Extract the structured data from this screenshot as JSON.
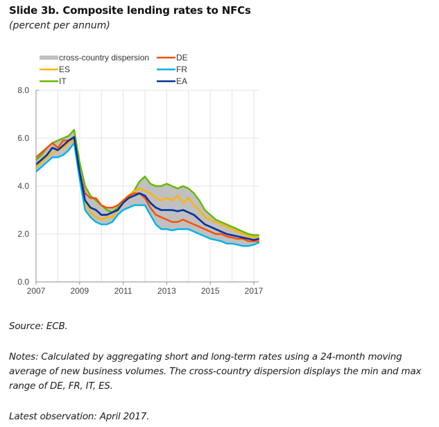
{
  "header": {
    "title": "Slide 3b. Composite lending rates to NFCs",
    "subtitle": "(percent per annum)"
  },
  "footer": {
    "source": "Source: ECB.",
    "notes": "Notes: Calculated by aggregating short and long-term rates using a 24-month moving average of new business volumes. The cross-country dispersion displays the min and max range of DE, FR, IT, ES.",
    "latest": "Latest observation: April 2017."
  },
  "chart_data": {
    "type": "line",
    "title": "Slide 3b. Composite lending rates to NFCs",
    "subtitle": "(percent per annum)",
    "xlabel": "",
    "ylabel": "percent per annum",
    "xlim": [
      2007,
      2017.3
    ],
    "ylim": [
      0,
      8
    ],
    "xticks": [
      2007,
      2009,
      2011,
      2013,
      2015,
      2017
    ],
    "xtick_labels": [
      "2007",
      "2009",
      "2011",
      "2013",
      "2015",
      "2017"
    ],
    "yticks": [
      0,
      2,
      4,
      6,
      8
    ],
    "ytick_labels": [
      "0.0",
      "2.0",
      "4.0",
      "6.0",
      "8.0"
    ],
    "grid": true,
    "legend_position": "top-left",
    "legend": [
      {
        "name": "cross-country dispersion",
        "kind": "area",
        "color": "#c0c0c0"
      },
      {
        "name": "DE",
        "kind": "line",
        "color": "#ff4b00"
      },
      {
        "name": "ES",
        "kind": "line",
        "color": "#ffb400"
      },
      {
        "name": "FR",
        "kind": "line",
        "color": "#00b1ea"
      },
      {
        "name": "IT",
        "kind": "line",
        "color": "#65b800"
      },
      {
        "name": "EA",
        "kind": "line",
        "color": "#003299"
      }
    ],
    "dispersion": {
      "name": "cross-country dispersion",
      "of": [
        "DE",
        "FR",
        "IT",
        "ES"
      ],
      "color": "#c0c0c0"
    },
    "x": [
      2007.0,
      2007.25,
      2007.5,
      2007.75,
      2008.0,
      2008.25,
      2008.5,
      2008.75,
      2009.0,
      2009.25,
      2009.5,
      2009.75,
      2010.0,
      2010.25,
      2010.5,
      2010.75,
      2011.0,
      2011.25,
      2011.5,
      2011.75,
      2012.0,
      2012.25,
      2012.5,
      2012.75,
      2013.0,
      2013.25,
      2013.5,
      2013.75,
      2014.0,
      2014.25,
      2014.5,
      2014.75,
      2015.0,
      2015.25,
      2015.5,
      2015.75,
      2016.0,
      2016.25,
      2016.5,
      2016.75,
      2017.0,
      2017.25
    ],
    "series": [
      {
        "name": "IT",
        "color": "#65b800",
        "values": [
          5.1,
          5.3,
          5.6,
          5.8,
          5.9,
          6.0,
          6.1,
          6.35,
          5.0,
          4.0,
          3.6,
          3.4,
          3.2,
          3.0,
          2.9,
          3.1,
          3.3,
          3.5,
          3.8,
          4.2,
          4.4,
          4.1,
          4.0,
          4.0,
          4.1,
          4.0,
          3.9,
          4.0,
          3.9,
          3.7,
          3.4,
          3.0,
          2.8,
          2.6,
          2.5,
          2.4,
          2.3,
          2.2,
          2.1,
          2.0,
          1.95,
          1.95
        ]
      },
      {
        "name": "ES",
        "color": "#ffb400",
        "values": [
          4.8,
          5.0,
          5.2,
          5.4,
          5.5,
          5.6,
          5.8,
          5.9,
          4.4,
          3.3,
          2.9,
          2.7,
          2.6,
          2.7,
          2.7,
          3.0,
          3.3,
          3.6,
          3.8,
          3.9,
          3.8,
          3.7,
          3.5,
          3.4,
          3.5,
          3.4,
          3.6,
          3.3,
          3.5,
          3.2,
          3.0,
          2.7,
          2.6,
          2.5,
          2.4,
          2.3,
          2.2,
          2.1,
          2.0,
          1.9,
          1.85,
          1.9
        ]
      },
      {
        "name": "DE",
        "color": "#ff4b00",
        "values": [
          5.2,
          5.4,
          5.6,
          5.8,
          5.6,
          5.9,
          5.9,
          6.0,
          4.6,
          3.7,
          3.5,
          3.5,
          3.2,
          3.1,
          3.1,
          3.2,
          3.4,
          3.6,
          3.7,
          3.7,
          3.5,
          3.1,
          2.8,
          2.7,
          2.6,
          2.5,
          2.5,
          2.6,
          2.5,
          2.4,
          2.3,
          2.2,
          2.1,
          2.0,
          2.0,
          1.9,
          1.85,
          1.8,
          1.8,
          1.7,
          1.7,
          1.7
        ]
      },
      {
        "name": "FR",
        "color": "#00b1ea",
        "values": [
          4.6,
          4.8,
          5.0,
          5.2,
          5.2,
          5.3,
          5.5,
          5.8,
          4.3,
          3.0,
          2.7,
          2.5,
          2.4,
          2.4,
          2.5,
          2.8,
          3.0,
          3.1,
          3.2,
          3.2,
          3.2,
          2.8,
          2.4,
          2.2,
          2.2,
          2.15,
          2.2,
          2.2,
          2.2,
          2.1,
          2.0,
          1.9,
          1.8,
          1.75,
          1.7,
          1.6,
          1.6,
          1.55,
          1.5,
          1.5,
          1.55,
          1.65
        ]
      },
      {
        "name": "EA",
        "color": "#003299",
        "values": [
          4.9,
          5.1,
          5.3,
          5.6,
          5.5,
          5.7,
          5.9,
          6.05,
          4.6,
          3.4,
          3.1,
          3.0,
          2.8,
          2.8,
          2.9,
          3.0,
          3.3,
          3.5,
          3.6,
          3.7,
          3.6,
          3.3,
          3.1,
          3.0,
          3.0,
          3.0,
          2.95,
          3.0,
          2.9,
          2.8,
          2.6,
          2.4,
          2.3,
          2.2,
          2.1,
          2.0,
          1.95,
          1.9,
          1.85,
          1.8,
          1.75,
          1.8
        ]
      }
    ]
  }
}
